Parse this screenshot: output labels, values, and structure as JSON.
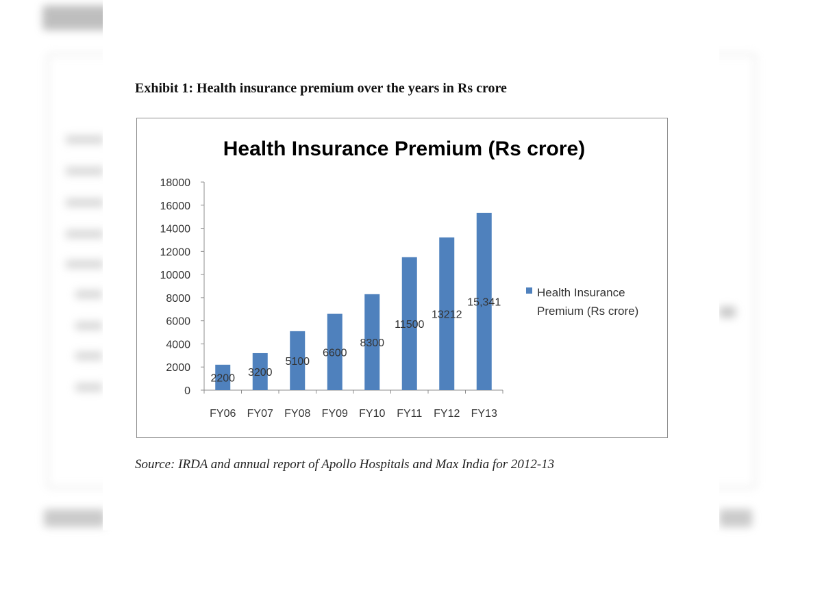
{
  "exhibit": {
    "title": "Exhibit 1: Health insurance premium over the years in Rs crore",
    "source": "Source: IRDA and annual report of Apollo Hospitals and Max India for 2012-13"
  },
  "colors": {
    "bar": "#4f81bd",
    "axis": "#8c8c8c",
    "frame": "#8c8c8c"
  },
  "chart_data": {
    "type": "bar",
    "title": "Health Insurance Premium (Rs crore)",
    "xlabel": "",
    "ylabel": "",
    "categories": [
      "FY06",
      "FY07",
      "FY08",
      "FY09",
      "FY10",
      "FY11",
      "FY12",
      "FY13"
    ],
    "series": [
      {
        "name": "Health Insurance Premium (Rs crore)",
        "values": [
          2200,
          3200,
          5100,
          6600,
          8300,
          11500,
          13212,
          15341
        ],
        "data_labels": [
          "2200",
          "3200",
          "5100",
          "6600",
          "8300",
          "11500",
          "13212",
          "15,341"
        ]
      }
    ],
    "ylim": [
      0,
      18000
    ],
    "yticks": [
      0,
      2000,
      4000,
      6000,
      8000,
      10000,
      12000,
      14000,
      16000,
      18000
    ],
    "grid": false,
    "legend_position": "right",
    "legend_lines": [
      "Health Insurance",
      "Premium (Rs crore)"
    ]
  }
}
